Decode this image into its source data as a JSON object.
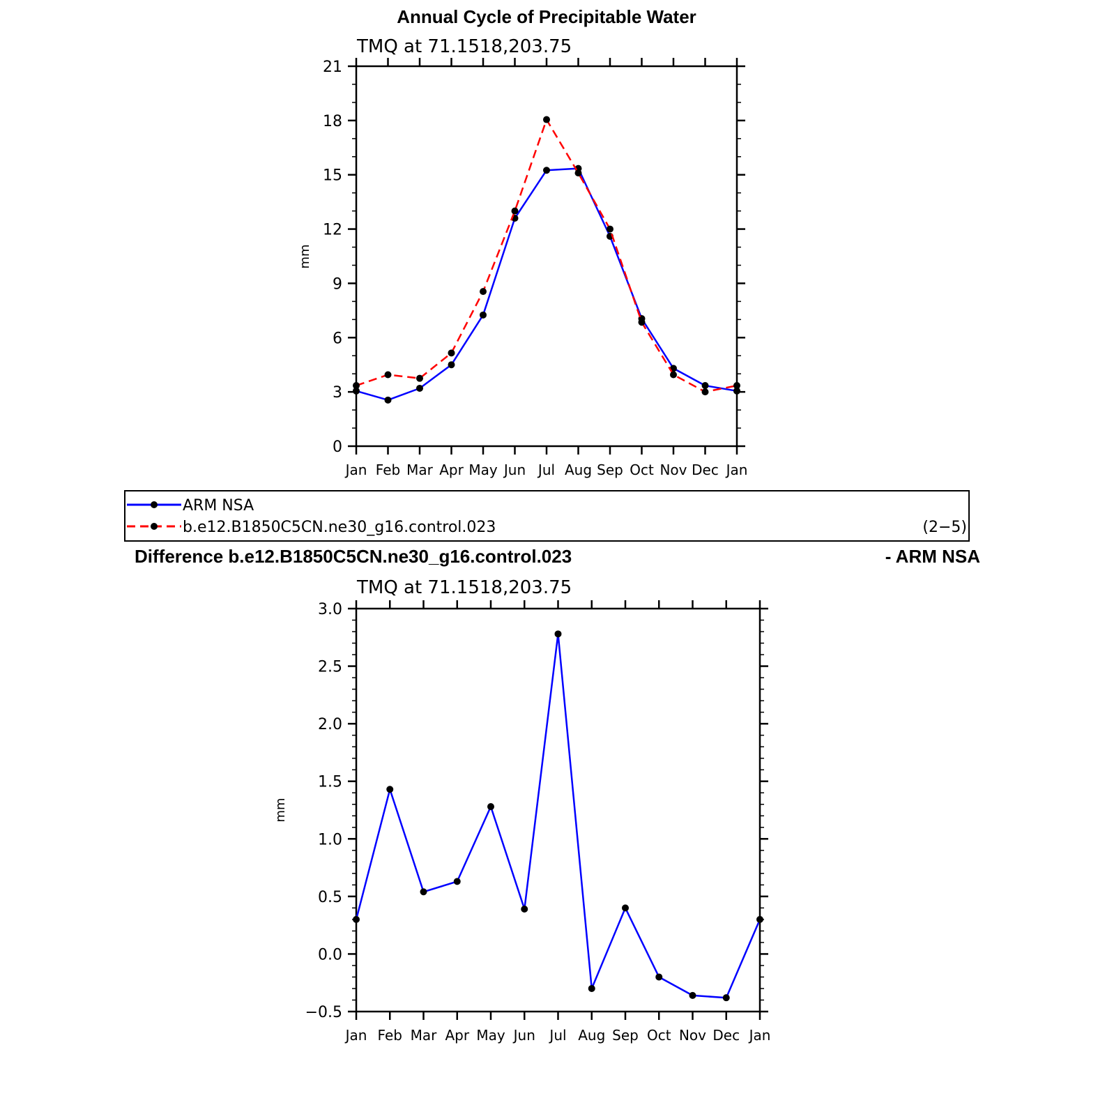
{
  "chart_data": [
    {
      "type": "line",
      "title": "Annual Cycle of Precipitable Water",
      "subtitle": "TMQ at 71.1518,203.75",
      "ylabel": "mm",
      "xlabel": "",
      "categories": [
        "Jan",
        "Feb",
        "Mar",
        "Apr",
        "May",
        "Jun",
        "Jul",
        "Aug",
        "Sep",
        "Oct",
        "Nov",
        "Dec",
        "Jan"
      ],
      "ylim": [
        0,
        21
      ],
      "yticks": [
        "0",
        "3",
        "6",
        "9",
        "12",
        "15",
        "18",
        "21"
      ],
      "series": [
        {
          "name": "ARM NSA",
          "color": "#0000ff",
          "dashed": false,
          "values": [
            3.05,
            2.55,
            3.2,
            4.5,
            7.25,
            12.6,
            15.25,
            15.35,
            11.6,
            7.05,
            4.3,
            3.35,
            3.05
          ]
        },
        {
          "name": "b.e12.B1850C5CN.ne30_g16.control.023",
          "color": "#ff0000",
          "dashed": true,
          "values": [
            3.35,
            3.95,
            3.75,
            5.15,
            8.55,
            13.0,
            18.05,
            15.1,
            12.0,
            6.85,
            3.95,
            3.0,
            3.35
          ]
        }
      ]
    },
    {
      "type": "line",
      "title": "Difference b.e12.B1850C5CN.ne30_g16.control.023",
      "title_right": "- ARM NSA",
      "subtitle": "TMQ at 71.1518,203.75",
      "ylabel": "mm",
      "xlabel": "",
      "categories": [
        "Jan",
        "Feb",
        "Mar",
        "Apr",
        "May",
        "Jun",
        "Jul",
        "Aug",
        "Sep",
        "Oct",
        "Nov",
        "Dec",
        "Jan"
      ],
      "ylim": [
        -0.5,
        3.0
      ],
      "yticks": [
        "−0.5",
        "0.0",
        "0.5",
        "1.0",
        "1.5",
        "2.0",
        "2.5",
        "3.0"
      ],
      "series": [
        {
          "name": "",
          "color": "#0000ff",
          "dashed": false,
          "values": [
            0.3,
            1.43,
            0.54,
            0.63,
            1.28,
            0.39,
            2.78,
            -0.3,
            0.4,
            -0.2,
            -0.36,
            -0.38,
            0.3
          ]
        }
      ]
    }
  ],
  "legend": {
    "items": [
      "ARM NSA",
      "b.e12.B1850C5CN.ne30_g16.control.023"
    ],
    "panel_label": "(2−5)"
  }
}
